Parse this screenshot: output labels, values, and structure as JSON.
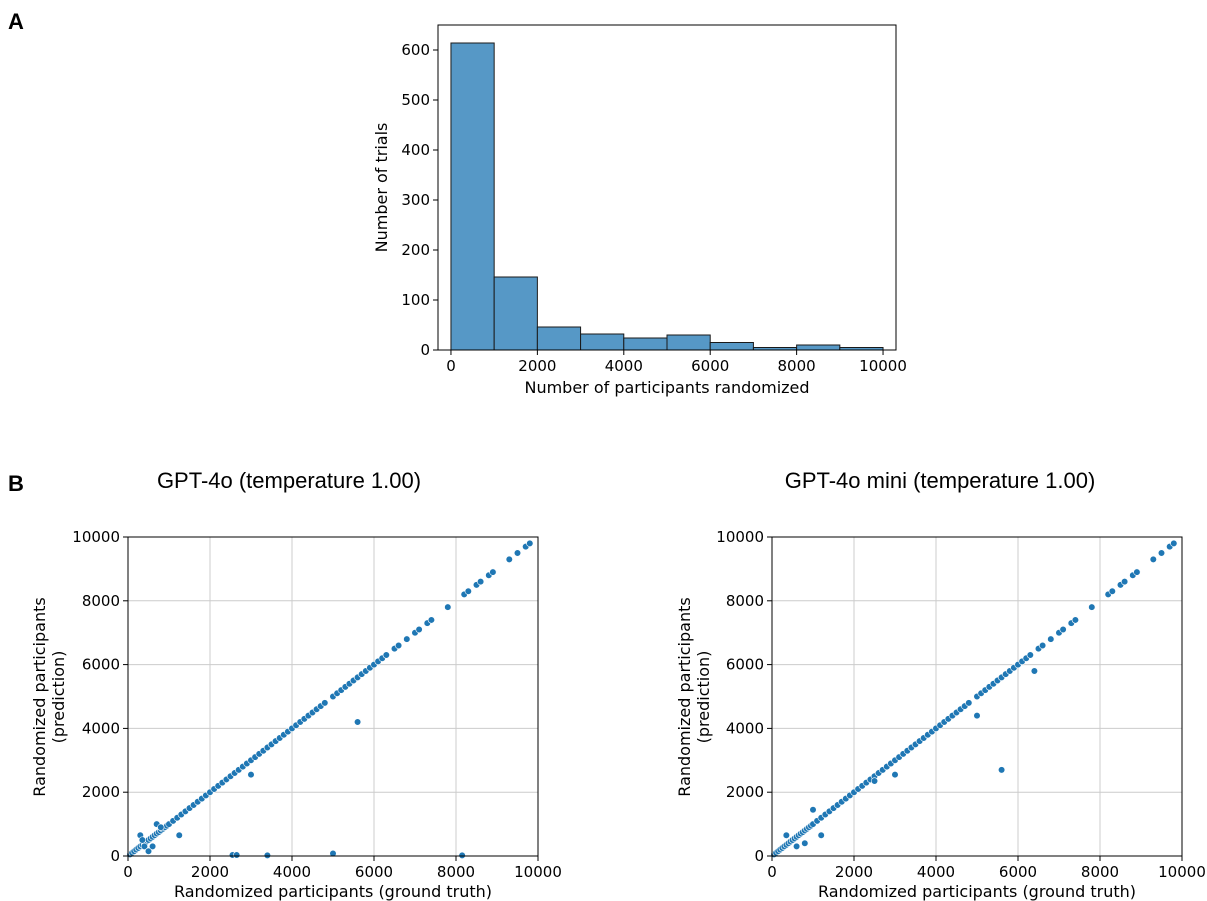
{
  "panels": {
    "a": {
      "letter": "A"
    },
    "b": {
      "letter": "B"
    }
  },
  "colors": {
    "bar_fill": "#5698c6",
    "bar_edge": "#1a1a1a",
    "point": "#1f77b4",
    "point_edge": "#ffffff",
    "grid": "#cccccc"
  },
  "chart_data": [
    {
      "type": "bar",
      "title": "",
      "xlabel": "Number of participants randomized",
      "ylabel": "Number of trials",
      "bin_edges": [
        0,
        1000,
        2000,
        3000,
        4000,
        5000,
        6000,
        7000,
        8000,
        9000,
        10000
      ],
      "values": [
        614,
        146,
        46,
        32,
        24,
        30,
        15,
        5,
        10,
        5
      ],
      "xlim": [
        -300,
        10300
      ],
      "ylim": [
        0,
        650
      ],
      "xticks": [
        "0",
        "2000",
        "4000",
        "6000",
        "8000",
        "10000"
      ],
      "xtick_values": [
        0,
        2000,
        4000,
        6000,
        8000,
        10000
      ],
      "yticks": [
        "0",
        "100",
        "200",
        "300",
        "400",
        "500",
        "600"
      ],
      "ytick_values": [
        0,
        100,
        200,
        300,
        400,
        500,
        600
      ],
      "grid": false
    },
    {
      "type": "scatter",
      "title": "GPT-4o (temperature 1.00)",
      "xlabel": "Randomized participants (ground truth)",
      "ylabel": [
        "Randomized participants",
        "(prediction)"
      ],
      "xlim": [
        0,
        10000
      ],
      "ylim": [
        0,
        10000
      ],
      "xticks": [
        "0",
        "2000",
        "4000",
        "6000",
        "8000",
        "10000"
      ],
      "xtick_values": [
        0,
        2000,
        4000,
        6000,
        8000,
        10000
      ],
      "yticks": [
        "0",
        "2000",
        "4000",
        "6000",
        "8000",
        "10000"
      ],
      "ytick_values": [
        0,
        2000,
        4000,
        6000,
        8000,
        10000
      ],
      "grid": true,
      "outliers": [
        [
          300,
          650
        ],
        [
          350,
          500
        ],
        [
          400,
          300
        ],
        [
          500,
          150
        ],
        [
          600,
          300
        ],
        [
          700,
          1000
        ],
        [
          800,
          900
        ],
        [
          1250,
          650
        ],
        [
          3000,
          2550
        ],
        [
          5600,
          4200
        ],
        [
          2550,
          30
        ],
        [
          2650,
          30
        ],
        [
          3400,
          20
        ],
        [
          5000,
          80
        ],
        [
          8150,
          20
        ]
      ]
    },
    {
      "type": "scatter",
      "title": "GPT-4o mini (temperature 1.00)",
      "xlabel": "Randomized participants (ground truth)",
      "ylabel": [
        "Randomized participants",
        "(prediction)"
      ],
      "xlim": [
        0,
        10000
      ],
      "ylim": [
        0,
        10000
      ],
      "xticks": [
        "0",
        "2000",
        "4000",
        "6000",
        "8000",
        "10000"
      ],
      "xtick_values": [
        0,
        2000,
        4000,
        6000,
        8000,
        10000
      ],
      "yticks": [
        "0",
        "2000",
        "4000",
        "6000",
        "8000",
        "10000"
      ],
      "ytick_values": [
        0,
        2000,
        4000,
        6000,
        8000,
        10000
      ],
      "grid": true,
      "outliers": [
        [
          350,
          650
        ],
        [
          600,
          300
        ],
        [
          800,
          400
        ],
        [
          1000,
          1450
        ],
        [
          1200,
          650
        ],
        [
          5000,
          4400
        ],
        [
          6400,
          5800
        ],
        [
          5600,
          2700
        ],
        [
          3000,
          2550
        ],
        [
          2500,
          2350
        ]
      ]
    }
  ],
  "diagonal_points": [
    50,
    100,
    150,
    200,
    250,
    300,
    350,
    400,
    450,
    500,
    550,
    600,
    650,
    700,
    750,
    800,
    850,
    900,
    950,
    1000,
    1100,
    1200,
    1300,
    1400,
    1500,
    1600,
    1700,
    1800,
    1900,
    2000,
    2100,
    2200,
    2300,
    2400,
    2500,
    2600,
    2700,
    2800,
    2900,
    3000,
    3100,
    3200,
    3300,
    3400,
    3500,
    3600,
    3700,
    3800,
    3900,
    4000,
    4100,
    4200,
    4300,
    4400,
    4500,
    4600,
    4700,
    4800,
    5000,
    5100,
    5200,
    5300,
    5400,
    5500,
    5600,
    5700,
    5800,
    5900,
    6000,
    6100,
    6200,
    6300,
    6500,
    6600,
    6800,
    7000,
    7100,
    7300,
    7400,
    7800,
    8200,
    8300,
    8500,
    8600,
    8800,
    8900,
    9300,
    9500,
    9700,
    9800
  ]
}
